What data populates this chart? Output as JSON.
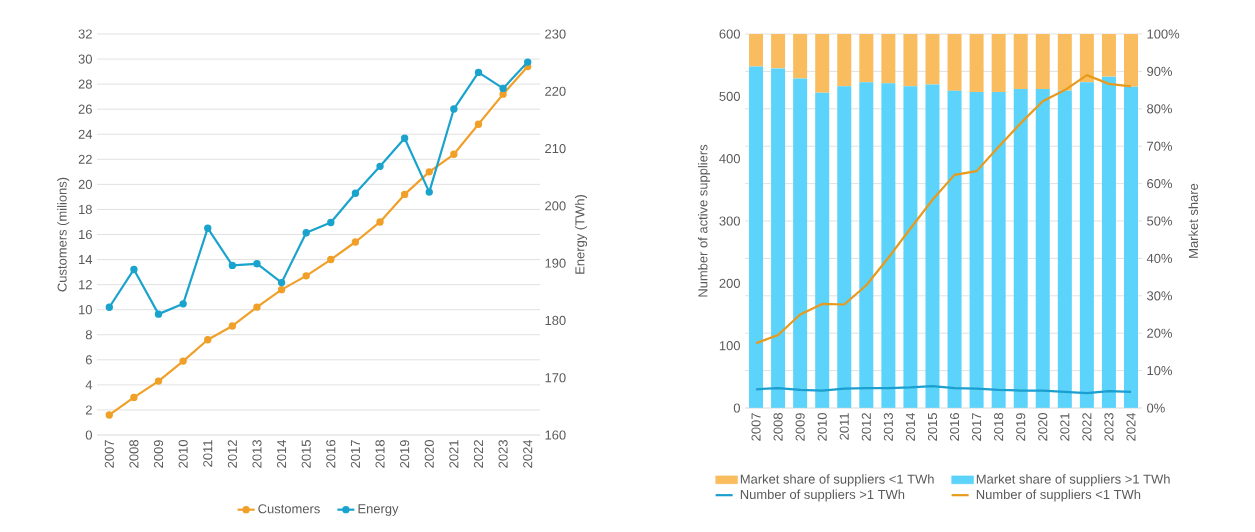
{
  "chart_data": [
    {
      "type": "line",
      "ylabel": "Customers (milions)",
      "y2label": "Energy (TWh)",
      "categories": [
        "2007",
        "2008",
        "2009",
        "2010",
        "2011",
        "2012",
        "2013",
        "2014",
        "2015",
        "2016",
        "2017",
        "2018",
        "2019",
        "2020",
        "2021",
        "2022",
        "2023",
        "2024"
      ],
      "series": [
        {
          "name": "Customers",
          "color": "#f0a028",
          "values": [
            1.6,
            3.0,
            4.3,
            5.9,
            7.6,
            8.7,
            10.2,
            11.6,
            12.7,
            14.0,
            15.4,
            17.0,
            19.2,
            21.0,
            22.4,
            24.8,
            27.2,
            29.4
          ]
        },
        {
          "name": "Energy",
          "color": "#1aa3cc",
          "axis": "y2",
          "values": [
            182.3,
            188.9,
            181.1,
            182.9,
            196.1,
            189.6,
            189.9,
            186.6,
            195.3,
            197.1,
            202.2,
            206.9,
            211.8,
            202.4,
            216.9,
            223.3,
            220.5,
            225.1
          ]
        }
      ],
      "ylim": [
        0,
        32
      ],
      "yticks": [
        0,
        2,
        4,
        6,
        8,
        10,
        12,
        14,
        16,
        18,
        20,
        22,
        24,
        26,
        28,
        30,
        32
      ],
      "y2lim": [
        160,
        230
      ],
      "y2ticks": [
        160,
        170,
        180,
        190,
        200,
        210,
        220,
        230
      ],
      "grid": "y",
      "legend": "bottom",
      "marker": "circle"
    },
    {
      "type": "bar",
      "stacked": true,
      "ylabel": "Number of active suppliers",
      "y2label": "Market share",
      "categories": [
        "2007",
        "2008",
        "2009",
        "2010",
        "2011",
        "2012",
        "2013",
        "2014",
        "2015",
        "2016",
        "2017",
        "2018",
        "2019",
        "2020",
        "2021",
        "2022",
        "2023",
        "2024"
      ],
      "series": [
        {
          "name": "Market share of suppliers >1 TWh",
          "type": "bar",
          "axis": "y2",
          "color": "#5bd3fa",
          "values": [
            91.3,
            90.8,
            88.1,
            84.3,
            86.0,
            87.1,
            86.8,
            86.0,
            86.5,
            84.8,
            84.5,
            84.5,
            85.3,
            85.3,
            84.9,
            87.1,
            88.6,
            85.9
          ]
        },
        {
          "name": "Market share of suppliers <1 TWh",
          "type": "bar",
          "axis": "y2",
          "color": "#f9bd5f",
          "values": [
            8.7,
            9.2,
            11.9,
            15.7,
            14.0,
            12.9,
            13.2,
            14.0,
            13.5,
            15.2,
            15.5,
            15.5,
            14.7,
            14.7,
            15.1,
            12.9,
            11.4,
            14.1
          ]
        },
        {
          "name": "Number of suppliers >1 TWh",
          "type": "line",
          "color": "#1a9fd0",
          "values": [
            30,
            32,
            29,
            28,
            31,
            32,
            32,
            33,
            35,
            32,
            31,
            29,
            28,
            28,
            26,
            24,
            27,
            26
          ]
        },
        {
          "name": "Number of suppliers <1 TWh",
          "type": "line",
          "color": "#e89a1c",
          "values": [
            104,
            117,
            150,
            167,
            166,
            197,
            241,
            288,
            334,
            374,
            380,
            419,
            457,
            492,
            510,
            534,
            520,
            516
          ]
        }
      ],
      "ylim": [
        0,
        600
      ],
      "yticks": [
        0,
        100,
        200,
        300,
        400,
        500,
        600
      ],
      "y2lim": [
        0,
        100
      ],
      "y2ticks": [
        {
          "value": 0,
          "label": "0%"
        },
        {
          "value": 10,
          "label": "10%"
        },
        {
          "value": 20,
          "label": "20%"
        },
        {
          "value": 30,
          "label": "30%"
        },
        {
          "value": 40,
          "label": "40%"
        },
        {
          "value": 50,
          "label": "50%"
        },
        {
          "value": 60,
          "label": "60%"
        },
        {
          "value": 70,
          "label": "70%"
        },
        {
          "value": 80,
          "label": "80%"
        },
        {
          "value": 90,
          "label": "90%"
        },
        {
          "value": 100,
          "label": "100%"
        }
      ],
      "grid": "y",
      "legend": "bottom"
    }
  ]
}
